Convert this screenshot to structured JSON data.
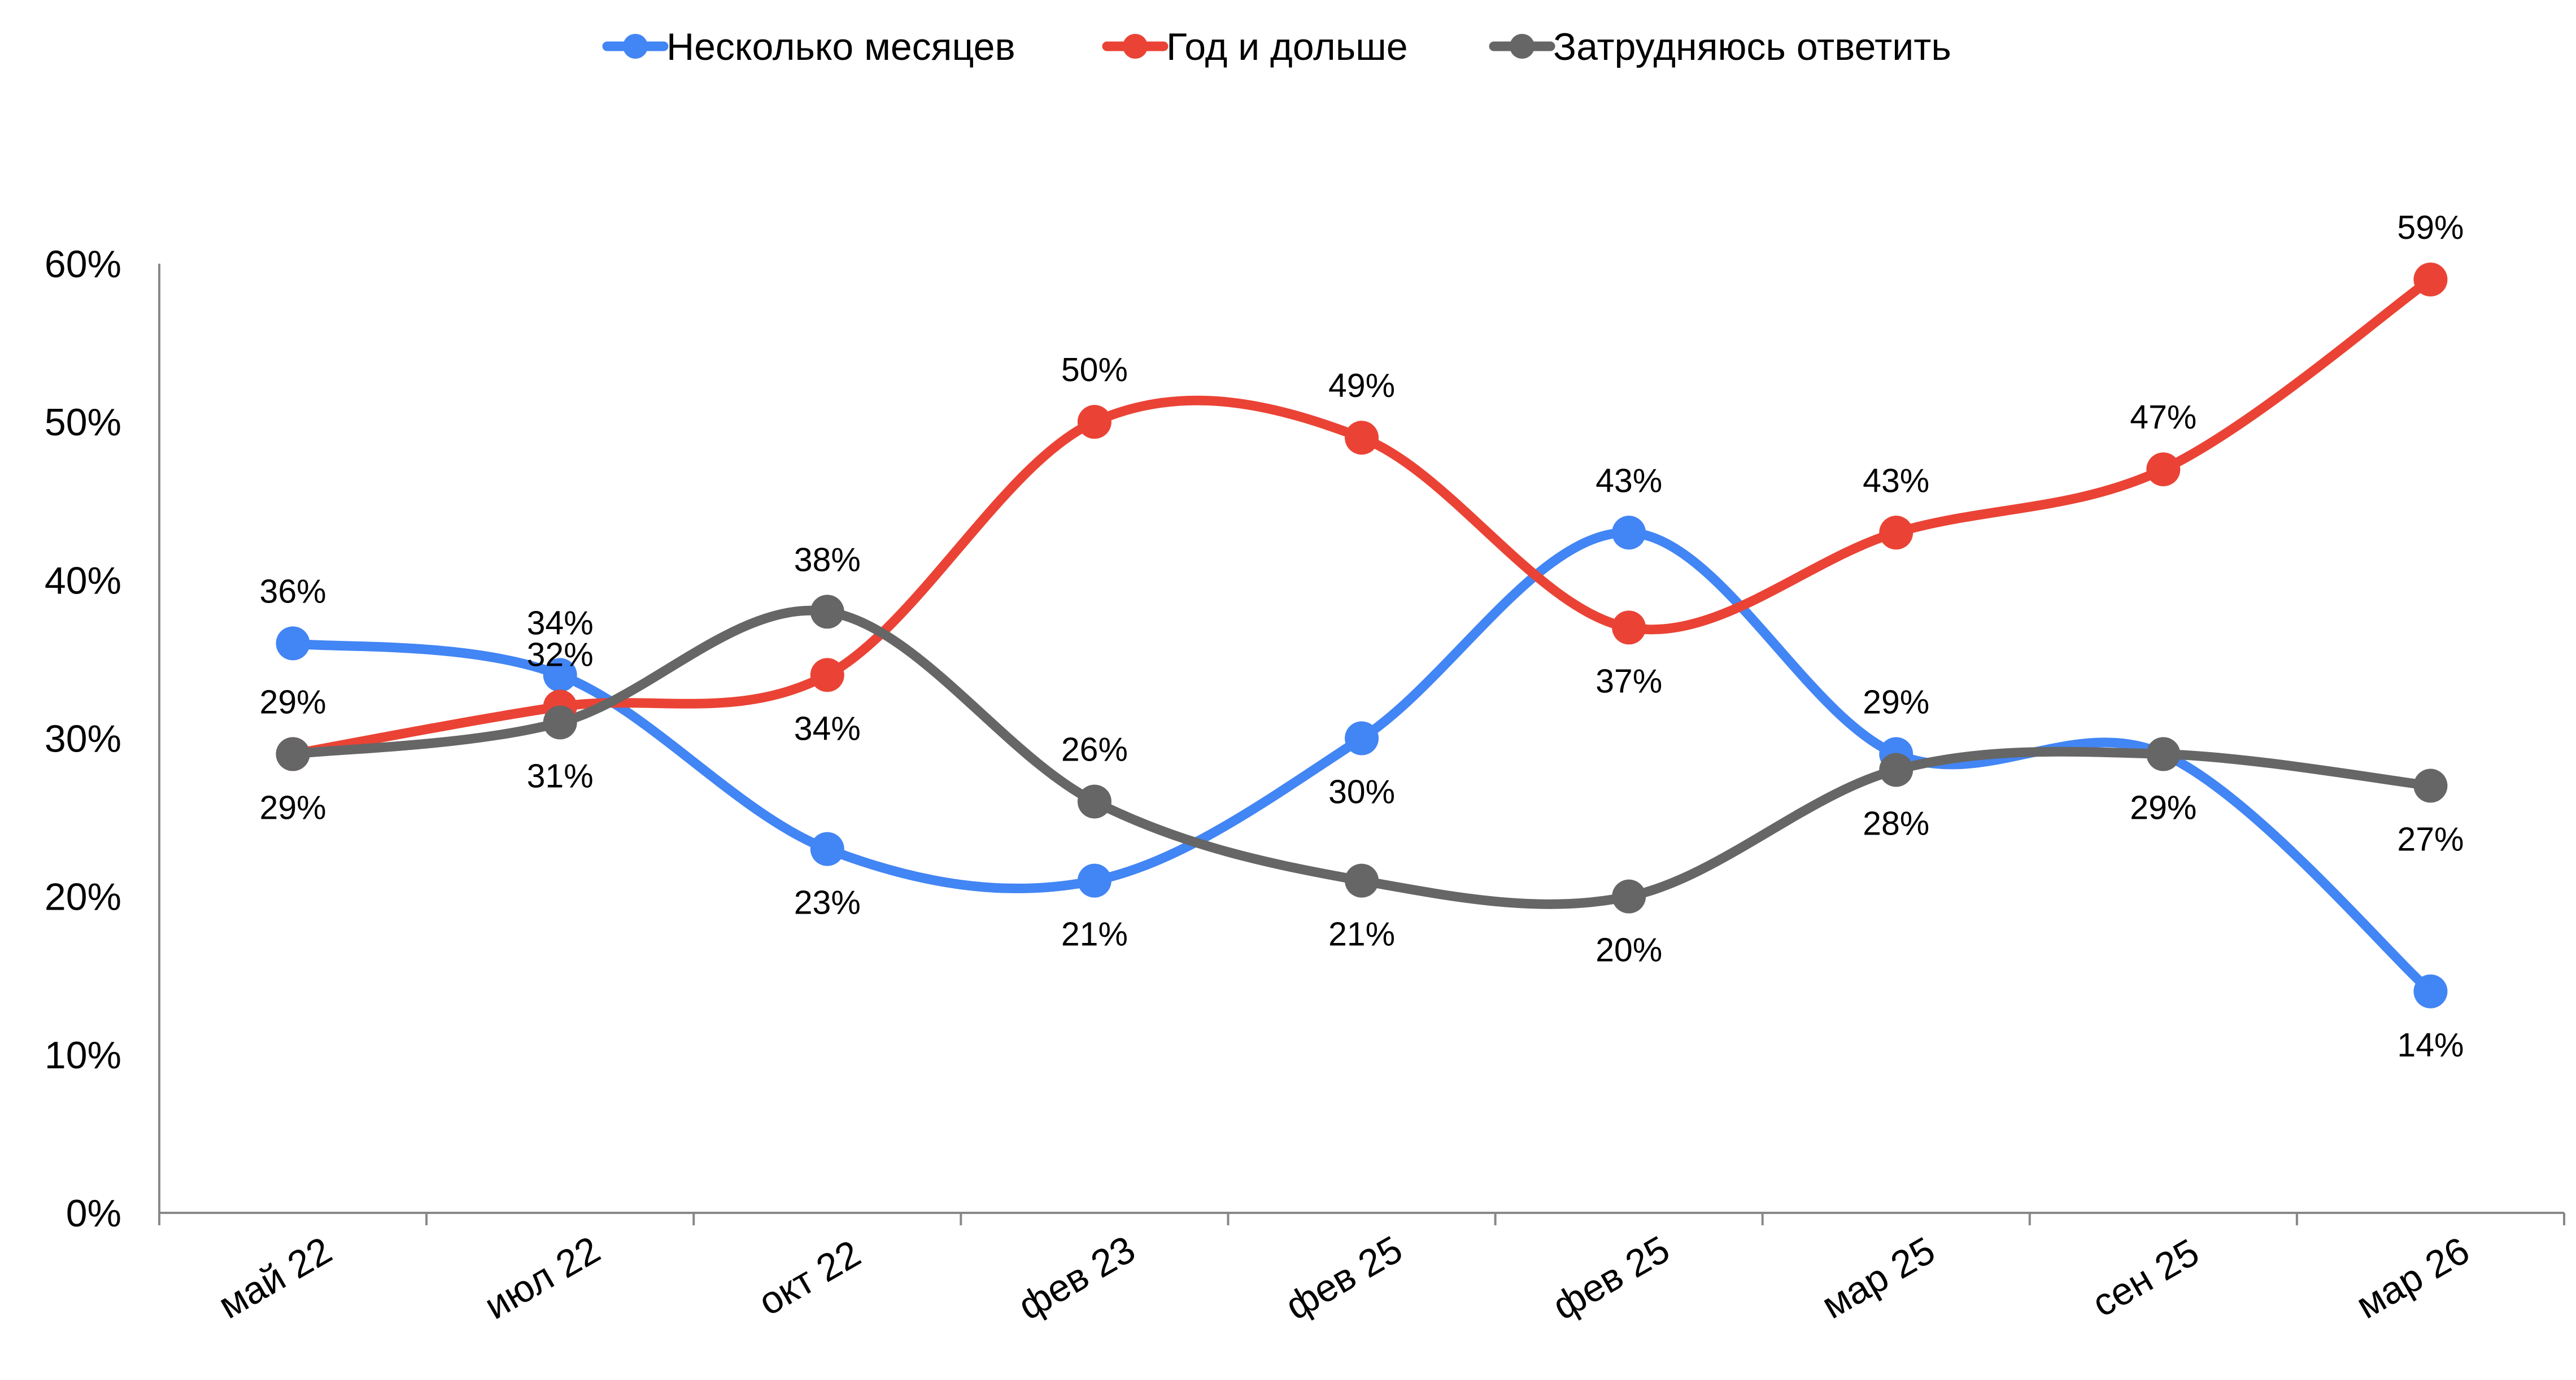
{
  "chart_data": {
    "type": "line",
    "title": "",
    "xlabel": "",
    "ylabel": "",
    "categories": [
      "май 22",
      "июл 22",
      "окт 22",
      "фев 23",
      "фев 25",
      "фев 25",
      "мар 25",
      "сен 25",
      "мар 26"
    ],
    "ylim": [
      0,
      60
    ],
    "y_ticks": [
      "0%",
      "10%",
      "20%",
      "30%",
      "40%",
      "50%",
      "60%"
    ],
    "y_tick_values": [
      0,
      10,
      20,
      30,
      40,
      50,
      60
    ],
    "grid": false,
    "smooth": true,
    "legend_position": "top",
    "series": [
      {
        "name": "Несколько месяцев",
        "color": "#4285F4",
        "values": [
          36,
          34,
          23,
          21,
          30,
          43,
          29,
          29,
          14
        ],
        "labels": [
          "36%",
          "34%",
          "23%",
          "21%",
          "30%",
          "43%",
          "29%",
          "29%",
          "14%"
        ],
        "label_side": [
          "above",
          "above",
          "below",
          "below",
          "below",
          "above",
          "above",
          "below",
          "below"
        ]
      },
      {
        "name": "Год и дольше",
        "color": "#EA4335",
        "values": [
          29,
          32,
          34,
          50,
          49,
          37,
          43,
          47,
          59
        ],
        "labels": [
          "29%",
          "32%",
          "34%",
          "50%",
          "49%",
          "37%",
          "43%",
          "47%",
          "59%"
        ],
        "label_side": [
          "above",
          "above",
          "below",
          "above",
          "above",
          "below",
          "above",
          "above",
          "above"
        ]
      },
      {
        "name": "Затрудняюсь ответить",
        "color": "#666666",
        "values": [
          29,
          31,
          38,
          26,
          21,
          20,
          28,
          29,
          27
        ],
        "labels": [
          "29%",
          "31%",
          "38%",
          "26%",
          "21%",
          "20%",
          "28%",
          "29%",
          "27%"
        ],
        "label_side": [
          "below",
          "below",
          "above",
          "above",
          "below",
          "below",
          "below",
          "below",
          "below"
        ]
      }
    ]
  }
}
